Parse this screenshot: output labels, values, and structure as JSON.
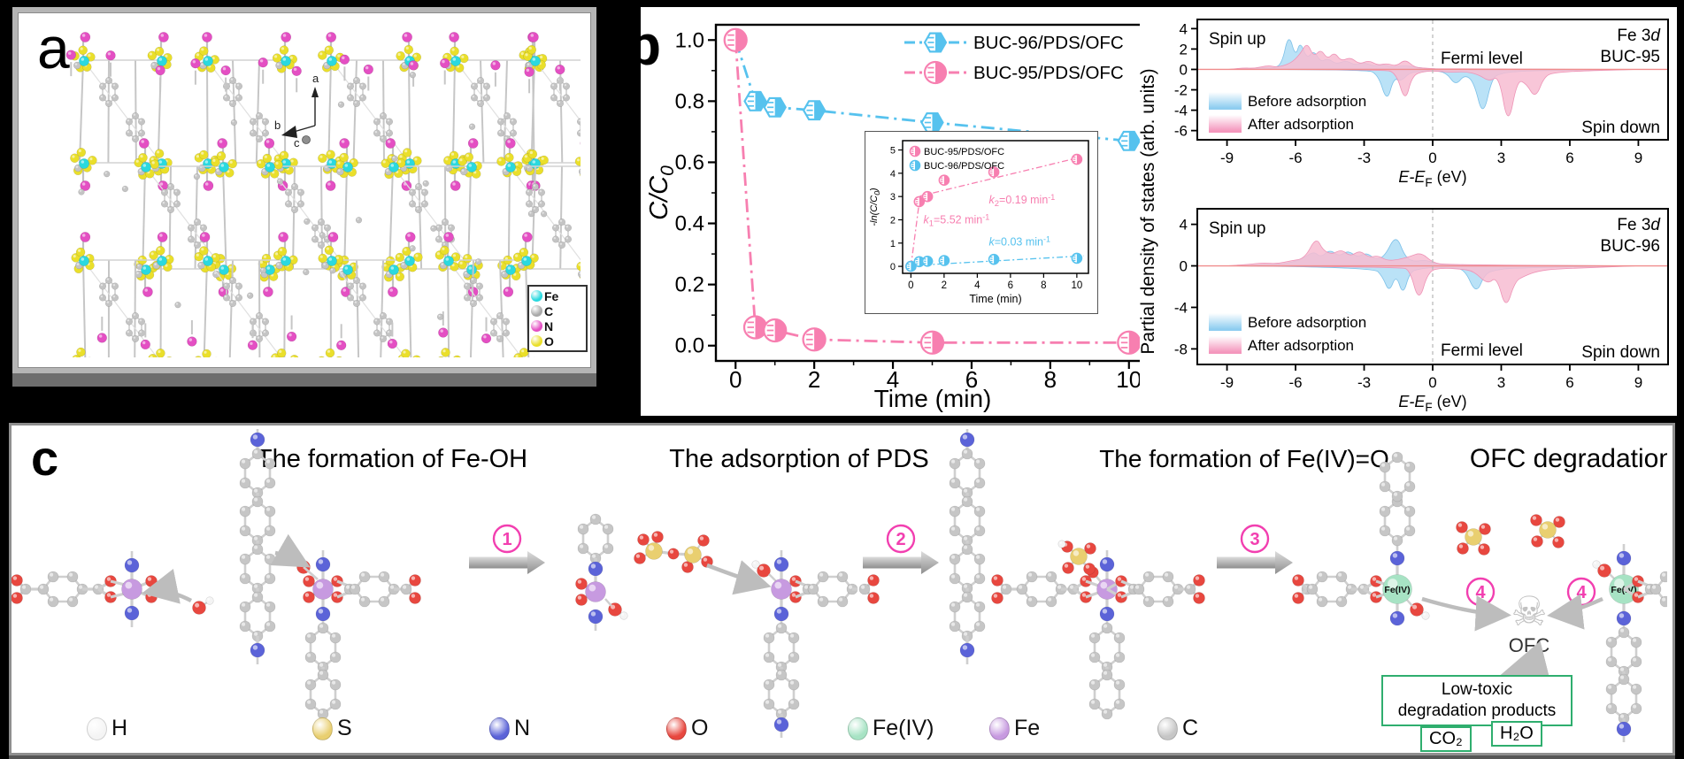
{
  "figure": {
    "background": "#000000"
  },
  "panel_a": {
    "label": "a",
    "triad": {
      "up": "a",
      "left": "b",
      "front": "c"
    },
    "legend": [
      {
        "label": "Fe",
        "color": "#2ad9df"
      },
      {
        "label": "C",
        "color": "#a8a8a8"
      },
      {
        "label": "N",
        "color": "#e44fc3"
      },
      {
        "label": "O",
        "color": "#eadf2a"
      }
    ]
  },
  "panel_b": {
    "label": "b",
    "legend": [
      {
        "label": "BUC-96/PDS/OFC",
        "color": "#56c2ee",
        "marker": "hexagon-half"
      },
      {
        "label": "BUC-95/PDS/OFC",
        "color": "#f77fb0",
        "marker": "circle-half"
      }
    ]
  },
  "panel_pdos": {
    "ylabel": "Partial density of states (arb. units)",
    "xlabel": {
      "pre": "E-E",
      "sub": "F",
      "post": " (eV)"
    }
  },
  "panel_c": {
    "label": "c",
    "steps": [
      {
        "number": "1",
        "title": "The formation of Fe-OH"
      },
      {
        "number": "2",
        "title": "The adsorption of PDS"
      },
      {
        "number": "3",
        "title": "The formation of Fe(IV)=O"
      },
      {
        "number": "4",
        "title": "OFC degradation"
      }
    ],
    "fe4_label": "Fe(IV)",
    "skull_glyph": "☠",
    "skull_label": "OFC",
    "products": {
      "line1": "Low-toxic",
      "line2": "degradation products",
      "items": [
        "CO₂",
        "H₂O"
      ]
    },
    "legend": [
      {
        "label": "H",
        "color": "#f4f4f4"
      },
      {
        "label": "S",
        "color": "#e9cf70"
      },
      {
        "label": "N",
        "color": "#5b63d8"
      },
      {
        "label": "O",
        "color": "#e8473f"
      },
      {
        "label": "Fe(IV)",
        "color": "#a7e3c4"
      },
      {
        "label": "Fe",
        "color": "#c79ae0"
      },
      {
        "label": "C",
        "color": "#c6c6c6"
      }
    ]
  },
  "chart_data": [
    {
      "id": "kinetics_main",
      "type": "line",
      "xlabel": "Time (min)",
      "ylabel": {
        "pre": "C/C",
        "sub": "0"
      },
      "xlim": [
        -0.5,
        10.5
      ],
      "ylim": [
        -0.05,
        1.05
      ],
      "xticks": [
        0,
        2,
        4,
        6,
        8,
        10
      ],
      "yticks": [
        0.0,
        0.2,
        0.4,
        0.6,
        0.8,
        1.0
      ],
      "x": [
        0,
        0.5,
        1,
        2,
        5,
        10
      ],
      "series": [
        {
          "name": "BUC-96/PDS/OFC",
          "color": "#56c2ee",
          "marker": "hexagon-half",
          "values": [
            1.0,
            0.8,
            0.78,
            0.77,
            0.73,
            0.67
          ]
        },
        {
          "name": "BUC-95/PDS/OFC",
          "color": "#f77fb0",
          "marker": "circle-half",
          "values": [
            1.0,
            0.06,
            0.05,
            0.02,
            0.01,
            0.01
          ]
        }
      ],
      "line_style": "dash-dot",
      "legend_position": "top-right"
    },
    {
      "id": "kinetics_inset",
      "type": "line",
      "xlabel": "Time (min)",
      "ylabel": {
        "pre": "-ln(C/C",
        "sub": "0",
        "post": ")"
      },
      "xlim": [
        -0.5,
        10.7
      ],
      "ylim": [
        -0.3,
        5.4
      ],
      "xticks": [
        0,
        2,
        4,
        6,
        8,
        10
      ],
      "yticks": [
        0,
        1,
        2,
        3,
        4,
        5
      ],
      "x": [
        0,
        0.5,
        1,
        2,
        5,
        10
      ],
      "series": [
        {
          "name": "BUC-95/PDS/OFC",
          "color": "#f77fb0",
          "marker": "circle-half",
          "values": [
            0,
            2.78,
            3.0,
            3.7,
            4.05,
            4.6
          ]
        },
        {
          "name": "BUC-96/PDS/OFC",
          "color": "#56c2ee",
          "marker": "circle-half",
          "values": [
            0,
            0.2,
            0.22,
            0.25,
            0.3,
            0.35
          ]
        }
      ],
      "fit_lines": [
        {
          "color": "#f77fb0",
          "points": [
            [
              0,
              0
            ],
            [
              0.55,
              3.02
            ]
          ]
        },
        {
          "color": "#f77fb0",
          "points": [
            [
              0.55,
              3.02
            ],
            [
              10.4,
              4.72
            ]
          ]
        },
        {
          "color": "#56c2ee",
          "points": [
            [
              0,
              0.03
            ],
            [
              10.4,
              0.45
            ]
          ]
        }
      ],
      "annotations": [
        {
          "k": "k",
          "sub": "1",
          "rest": "=5.52 min",
          "sup": "-1",
          "x": 0.75,
          "y": 1.85,
          "color": "#f77fb0"
        },
        {
          "k": "k",
          "sub": "2",
          "rest": "=0.19 min",
          "sup": "-1",
          "x": 4.7,
          "y": 2.7,
          "color": "#f77fb0"
        },
        {
          "k": "k",
          "sub": "",
          "rest": "=0.03 min",
          "sup": "-1",
          "x": 4.7,
          "y": 0.9,
          "color": "#56c2ee"
        }
      ]
    },
    {
      "id": "pdos_buc95",
      "type": "area",
      "material": "BUC-95",
      "orbital_pre": "Fe 3",
      "orbital_italic": "d",
      "spin_up": "Spin up",
      "spin_down": "Spin down",
      "fermi": "Fermi level",
      "legend": [
        {
          "label": "Before adsorption",
          "color": "#aeddf6"
        },
        {
          "label": "After  adsorption",
          "color": "#f7bcd1"
        }
      ],
      "xlim": [
        -10.3,
        10.3
      ],
      "xticks": [
        -9,
        -6,
        -3,
        0,
        3,
        6,
        9
      ],
      "ylim": [
        4.9,
        -6.9
      ],
      "yticks": [
        4,
        2,
        0,
        -2,
        -4,
        -6
      ],
      "series": [
        {
          "name": "before-up",
          "color": "#aeddf6",
          "points": [
            [
              -9,
              0
            ],
            [
              -8,
              0.05
            ],
            [
              -7.4,
              0.2
            ],
            [
              -7,
              0.1
            ],
            [
              -6.6,
              0.5
            ],
            [
              -6.3,
              3.6
            ],
            [
              -6,
              1.2
            ],
            [
              -5.8,
              2.8
            ],
            [
              -5.5,
              1
            ],
            [
              -5.2,
              1.9
            ],
            [
              -4.9,
              0.7
            ],
            [
              -4.6,
              1.1
            ],
            [
              -4.2,
              0.5
            ],
            [
              -3.8,
              0.9
            ],
            [
              -3.4,
              0.4
            ],
            [
              -3,
              0.7
            ],
            [
              -2.6,
              0.3
            ],
            [
              -2.2,
              0.5
            ],
            [
              -1.8,
              0.2
            ],
            [
              -1.2,
              0.4
            ],
            [
              -0.6,
              0.15
            ],
            [
              0,
              0.05
            ],
            [
              1,
              0.02
            ],
            [
              3,
              0.02
            ],
            [
              9,
              0
            ]
          ]
        },
        {
          "name": "after-up",
          "color": "#f7bcd1",
          "points": [
            [
              -9,
              0
            ],
            [
              -8.3,
              0.15
            ],
            [
              -7.8,
              0.1
            ],
            [
              -7.2,
              0.4
            ],
            [
              -6.8,
              0.2
            ],
            [
              -6.2,
              0.6
            ],
            [
              -5.8,
              1.5
            ],
            [
              -5.5,
              2.7
            ],
            [
              -5.2,
              1.2
            ],
            [
              -4.9,
              2
            ],
            [
              -4.6,
              1
            ],
            [
              -4.3,
              1.7
            ],
            [
              -4,
              0.8
            ],
            [
              -3.6,
              1.2
            ],
            [
              -3.2,
              0.5
            ],
            [
              -2.8,
              0.9
            ],
            [
              -2.4,
              0.4
            ],
            [
              -2,
              0.6
            ],
            [
              -1.6,
              0.3
            ],
            [
              -1.2,
              1
            ],
            [
              -0.8,
              0.2
            ],
            [
              -0.3,
              0.1
            ],
            [
              0.5,
              0.05
            ],
            [
              9,
              0
            ]
          ]
        },
        {
          "name": "before-down",
          "color": "#aeddf6",
          "points": [
            [
              -9,
              0
            ],
            [
              -3,
              0
            ],
            [
              -2.4,
              -0.4
            ],
            [
              -2,
              -3.3
            ],
            [
              -1.7,
              -0.8
            ],
            [
              -1.4,
              -1.2
            ],
            [
              -1,
              -0.3
            ],
            [
              -0.5,
              -0.2
            ],
            [
              0,
              -0.1
            ],
            [
              0.6,
              -0.3
            ],
            [
              1,
              -1.6
            ],
            [
              1.4,
              -0.5
            ],
            [
              1.8,
              -1.2
            ],
            [
              2.2,
              -4.8
            ],
            [
              2.6,
              -0.8
            ],
            [
              3,
              -0.4
            ],
            [
              3.6,
              -0.2
            ],
            [
              5,
              -0.1
            ],
            [
              9,
              0
            ]
          ]
        },
        {
          "name": "after-down",
          "color": "#f7bcd1",
          "points": [
            [
              -9,
              0
            ],
            [
              -2.2,
              0
            ],
            [
              -1.6,
              -0.3
            ],
            [
              -1.2,
              -3.3
            ],
            [
              -0.9,
              -0.6
            ],
            [
              -0.4,
              -0.2
            ],
            [
              0.2,
              -0.15
            ],
            [
              0.8,
              -0.3
            ],
            [
              1.4,
              -0.2
            ],
            [
              2,
              -0.5
            ],
            [
              2.5,
              -1.2
            ],
            [
              2.9,
              -0.6
            ],
            [
              3.3,
              -5.8
            ],
            [
              3.7,
              -1
            ],
            [
              4.1,
              -1.4
            ],
            [
              4.5,
              -2.9
            ],
            [
              4.9,
              -0.6
            ],
            [
              5.4,
              -0.3
            ],
            [
              6.5,
              -0.15
            ],
            [
              9,
              0
            ]
          ]
        }
      ]
    },
    {
      "id": "pdos_buc96",
      "type": "area",
      "material": "BUC-96",
      "orbital_pre": "Fe 3",
      "orbital_italic": "d",
      "spin_up": "Spin up",
      "spin_down": "Spin down",
      "fermi": "Fermi level",
      "legend": [
        {
          "label": "Before adsorption",
          "color": "#aeddf6"
        },
        {
          "label": "After  adsorption",
          "color": "#f7bcd1"
        }
      ],
      "xlim": [
        -10.3,
        10.3
      ],
      "xticks": [
        -9,
        -6,
        -3,
        0,
        3,
        6,
        9
      ],
      "ylim": [
        5.5,
        -9.5
      ],
      "yticks": [
        4,
        0,
        -4,
        -8
      ],
      "series": [
        {
          "name": "before-up",
          "color": "#aeddf6",
          "points": [
            [
              -9,
              0
            ],
            [
              -7,
              0.1
            ],
            [
              -6.2,
              0.3
            ],
            [
              -5.6,
              0.8
            ],
            [
              -5.2,
              1.4
            ],
            [
              -4.9,
              0.8
            ],
            [
              -4.5,
              1.6
            ],
            [
              -4.1,
              0.9
            ],
            [
              -3.7,
              1.5
            ],
            [
              -3.3,
              0.8
            ],
            [
              -2.9,
              1.3
            ],
            [
              -2.5,
              0.6
            ],
            [
              -2.1,
              0.9
            ],
            [
              -1.6,
              3.1
            ],
            [
              -1.2,
              0.8
            ],
            [
              -0.8,
              0.4
            ],
            [
              -0.3,
              0.6
            ],
            [
              0.2,
              0.1
            ],
            [
              2,
              0.05
            ],
            [
              9,
              0
            ]
          ]
        },
        {
          "name": "after-up",
          "color": "#f7bcd1",
          "points": [
            [
              -9,
              0
            ],
            [
              -8,
              0.15
            ],
            [
              -7.4,
              0.3
            ],
            [
              -6.8,
              0.2
            ],
            [
              -6.2,
              0.5
            ],
            [
              -5.6,
              0.7
            ],
            [
              -5.1,
              2.8
            ],
            [
              -4.8,
              1.5
            ],
            [
              -4.4,
              1.1
            ],
            [
              -4,
              1.6
            ],
            [
              -3.6,
              0.9
            ],
            [
              -3.2,
              1.5
            ],
            [
              -2.8,
              0.8
            ],
            [
              -2.4,
              1
            ],
            [
              -2,
              0.5
            ],
            [
              -1.5,
              0.6
            ],
            [
              -1,
              0.9
            ],
            [
              -0.5,
              1.3
            ],
            [
              0,
              0.3
            ],
            [
              0.6,
              0.1
            ],
            [
              9,
              0
            ]
          ]
        },
        {
          "name": "before-down",
          "color": "#aeddf6",
          "points": [
            [
              -9,
              0
            ],
            [
              -2.6,
              -0.1
            ],
            [
              -2.2,
              -1
            ],
            [
              -1.9,
              -2.6
            ],
            [
              -1.6,
              -0.8
            ],
            [
              -1.3,
              -2.9
            ],
            [
              -1,
              -0.6
            ],
            [
              -0.6,
              -0.3
            ],
            [
              0,
              -0.15
            ],
            [
              0.8,
              -0.2
            ],
            [
              1.4,
              -0.3
            ],
            [
              1.9,
              -2.8
            ],
            [
              2.3,
              -0.7
            ],
            [
              2.8,
              -0.4
            ],
            [
              3.4,
              -0.2
            ],
            [
              9,
              0
            ]
          ]
        },
        {
          "name": "after-down",
          "color": "#f7bcd1",
          "points": [
            [
              -9,
              0
            ],
            [
              -1.4,
              -0.1
            ],
            [
              -1,
              -0.4
            ],
            [
              -0.6,
              -3.6
            ],
            [
              -0.2,
              -0.5
            ],
            [
              0.4,
              -0.2
            ],
            [
              1.2,
              -0.3
            ],
            [
              1.8,
              -0.5
            ],
            [
              2.4,
              -1.8
            ],
            [
              2.8,
              -1
            ],
            [
              3.2,
              -4.3
            ],
            [
              3.6,
              -1.5
            ],
            [
              4,
              -1
            ],
            [
              4.6,
              -0.5
            ],
            [
              5.4,
              -0.3
            ],
            [
              6.5,
              -0.2
            ],
            [
              9,
              0
            ]
          ]
        }
      ]
    }
  ]
}
